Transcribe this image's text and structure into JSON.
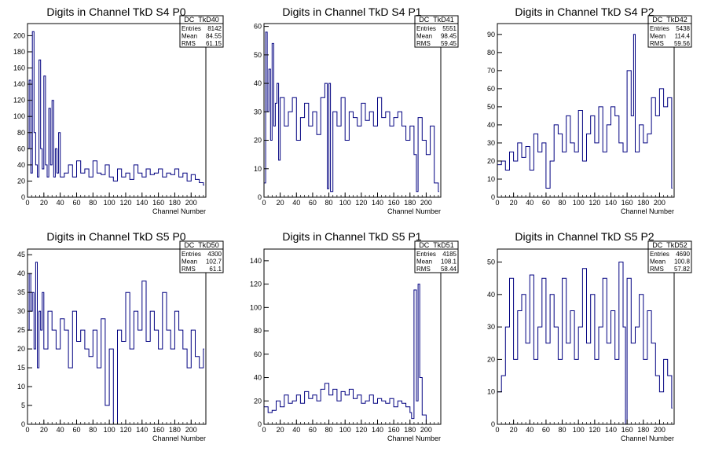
{
  "panels": [
    {
      "title": "Digits in Channel TkD S4 P0",
      "xlabel": "Channel Number",
      "stats": {
        "name": "DC_TkD40",
        "rows": [
          [
            "Entries",
            "8142"
          ],
          [
            "Mean",
            "84.55"
          ],
          [
            "RMS",
            "61.15"
          ]
        ]
      },
      "xlim": [
        0,
        218
      ],
      "ylim": [
        0,
        215
      ],
      "xticks": [
        0,
        20,
        40,
        60,
        80,
        100,
        120,
        140,
        160,
        180,
        200
      ],
      "yticks": [
        0,
        20,
        40,
        60,
        80,
        100,
        120,
        140,
        160,
        180,
        200
      ]
    },
    {
      "title": "Digits in Channel TkD S4 P1",
      "xlabel": "Channel Number",
      "stats": {
        "name": "DC_TkD41",
        "rows": [
          [
            "Entries",
            "5551"
          ],
          [
            "Mean",
            "98.45"
          ],
          [
            "RMS",
            "59.45"
          ]
        ]
      },
      "xlim": [
        0,
        218
      ],
      "ylim": [
        0,
        61
      ],
      "xticks": [
        0,
        20,
        40,
        60,
        80,
        100,
        120,
        140,
        160,
        180,
        200
      ],
      "yticks": [
        0,
        10,
        20,
        30,
        40,
        50,
        60
      ]
    },
    {
      "title": "Digits in Channel TkD S4 P2",
      "xlabel": "Channel Number",
      "stats": {
        "name": "DC_TkD42",
        "rows": [
          [
            "Entries",
            "5438"
          ],
          [
            "Mean",
            "114.4"
          ],
          [
            "RMS",
            "59.56"
          ]
        ]
      },
      "xlim": [
        0,
        218
      ],
      "ylim": [
        0,
        96
      ],
      "xticks": [
        0,
        20,
        40,
        60,
        80,
        100,
        120,
        140,
        160,
        180,
        200
      ],
      "yticks": [
        0,
        10,
        20,
        30,
        40,
        50,
        60,
        70,
        80,
        90
      ]
    },
    {
      "title": "Digits in Channel TkD S5 P0",
      "xlabel": "Channel Number",
      "stats": {
        "name": "DC_TkD50",
        "rows": [
          [
            "Entries",
            "4300"
          ],
          [
            "Mean",
            "102.7"
          ],
          [
            "RMS",
            "61.1"
          ]
        ]
      },
      "xlim": [
        0,
        218
      ],
      "ylim": [
        0,
        46.5
      ],
      "xticks": [
        0,
        20,
        40,
        60,
        80,
        100,
        120,
        140,
        160,
        180,
        200
      ],
      "yticks": [
        0,
        5,
        10,
        15,
        20,
        25,
        30,
        35,
        40,
        45
      ]
    },
    {
      "title": "Digits in Channel TkD S5 P1",
      "xlabel": "Channel Number",
      "stats": {
        "name": "DC_TkD51",
        "rows": [
          [
            "Entries",
            "4185"
          ],
          [
            "Mean",
            "108.1"
          ],
          [
            "RMS",
            "58.44"
          ]
        ]
      },
      "xlim": [
        0,
        218
      ],
      "ylim": [
        0,
        150
      ],
      "xticks": [
        0,
        20,
        40,
        60,
        80,
        100,
        120,
        140,
        160,
        180,
        200
      ],
      "yticks": [
        0,
        20,
        40,
        60,
        80,
        100,
        120,
        140
      ]
    },
    {
      "title": "Digits in Channel TkD S5 P2",
      "xlabel": "Channel Number",
      "stats": {
        "name": "DC_TkD52",
        "rows": [
          [
            "Entries",
            "4690"
          ],
          [
            "Mean",
            "100.8"
          ],
          [
            "RMS",
            "57.82"
          ]
        ]
      },
      "xlim": [
        0,
        218
      ],
      "ylim": [
        0,
        54
      ],
      "xticks": [
        0,
        20,
        40,
        60,
        80,
        100,
        120,
        140,
        160,
        180,
        200
      ],
      "yticks": [
        0,
        10,
        20,
        30,
        40,
        50
      ]
    }
  ],
  "colors": {
    "line": "#000080",
    "frame": "#000000"
  },
  "chart_data": [
    {
      "type": "line",
      "title": "Digits in Channel TkD S4 P0",
      "xlabel": "Channel Number",
      "ylabel": "",
      "xlim": [
        0,
        218
      ],
      "ylim": [
        0,
        215
      ],
      "series": [
        {
          "x": [
            0,
            2,
            4,
            6,
            8,
            10,
            12,
            14,
            16,
            18,
            20,
            22,
            24,
            26,
            28,
            30,
            32,
            34,
            36,
            38,
            40,
            45,
            50,
            55,
            60,
            65,
            70,
            75,
            80,
            85,
            90,
            95,
            100,
            105,
            110,
            115,
            120,
            125,
            130,
            135,
            140,
            145,
            150,
            155,
            160,
            165,
            170,
            175,
            180,
            185,
            190,
            195,
            200,
            205,
            210,
            215
          ],
          "y": [
            60,
            145,
            30,
            205,
            80,
            40,
            25,
            170,
            60,
            35,
            150,
            40,
            25,
            110,
            40,
            120,
            25,
            60,
            30,
            80,
            25,
            30,
            40,
            25,
            45,
            30,
            35,
            25,
            45,
            30,
            28,
            40,
            25,
            20,
            35,
            25,
            30,
            22,
            40,
            30,
            25,
            35,
            28,
            30,
            35,
            25,
            30,
            28,
            35,
            25,
            30,
            20,
            28,
            22,
            18,
            15
          ]
        }
      ]
    },
    {
      "type": "line",
      "title": "Digits in Channel TkD S4 P1",
      "xlabel": "Channel Number",
      "ylabel": "",
      "xlim": [
        0,
        218
      ],
      "ylim": [
        0,
        61
      ],
      "series": [
        {
          "x": [
            0,
            2,
            4,
            6,
            8,
            10,
            12,
            14,
            16,
            18,
            20,
            25,
            30,
            35,
            40,
            45,
            50,
            55,
            60,
            65,
            70,
            75,
            78,
            80,
            82,
            85,
            90,
            95,
            100,
            105,
            110,
            115,
            120,
            125,
            130,
            135,
            140,
            145,
            150,
            155,
            160,
            165,
            170,
            175,
            180,
            185,
            188,
            190,
            195,
            200,
            205,
            210,
            215
          ],
          "y": [
            5,
            58,
            30,
            45,
            20,
            54,
            25,
            33,
            40,
            13,
            35,
            25,
            30,
            35,
            20,
            28,
            33,
            25,
            30,
            22,
            35,
            40,
            3,
            40,
            2,
            30,
            25,
            35,
            20,
            30,
            28,
            25,
            33,
            27,
            30,
            25,
            35,
            28,
            30,
            25,
            28,
            30,
            25,
            20,
            25,
            15,
            2,
            28,
            20,
            15,
            25,
            5,
            2
          ]
        }
      ]
    },
    {
      "type": "line",
      "title": "Digits in Channel TkD S4 P2",
      "xlabel": "Channel Number",
      "ylabel": "",
      "xlim": [
        0,
        218
      ],
      "ylim": [
        0,
        96
      ],
      "series": [
        {
          "x": [
            0,
            5,
            10,
            15,
            20,
            25,
            30,
            35,
            40,
            45,
            50,
            55,
            60,
            65,
            70,
            75,
            80,
            85,
            90,
            95,
            100,
            105,
            110,
            115,
            120,
            125,
            130,
            135,
            140,
            145,
            150,
            155,
            160,
            165,
            168,
            170,
            175,
            180,
            185,
            190,
            195,
            200,
            205,
            210,
            215
          ],
          "y": [
            18,
            20,
            15,
            25,
            20,
            30,
            22,
            28,
            15,
            35,
            25,
            30,
            5,
            20,
            40,
            35,
            25,
            45,
            30,
            25,
            48,
            20,
            35,
            45,
            30,
            50,
            25,
            40,
            50,
            45,
            30,
            25,
            70,
            45,
            90,
            25,
            40,
            30,
            35,
            55,
            45,
            60,
            50,
            55,
            5
          ]
        }
      ]
    },
    {
      "type": "line",
      "title": "Digits in Channel TkD S5 P0",
      "xlabel": "Channel Number",
      "ylabel": "",
      "xlim": [
        0,
        218
      ],
      "ylim": [
        0,
        46.5
      ],
      "series": [
        {
          "x": [
            0,
            2,
            4,
            6,
            8,
            10,
            12,
            14,
            16,
            18,
            20,
            25,
            30,
            35,
            40,
            45,
            50,
            55,
            60,
            65,
            70,
            75,
            80,
            85,
            90,
            95,
            100,
            105,
            110,
            115,
            120,
            125,
            130,
            135,
            140,
            145,
            150,
            155,
            160,
            165,
            170,
            175,
            180,
            185,
            190,
            195,
            200,
            205,
            210,
            215
          ],
          "y": [
            25,
            40,
            30,
            35,
            20,
            43,
            15,
            30,
            25,
            35,
            20,
            30,
            25,
            20,
            28,
            25,
            15,
            30,
            22,
            25,
            20,
            18,
            25,
            15,
            28,
            5,
            20,
            0,
            25,
            22,
            35,
            20,
            30,
            25,
            38,
            22,
            30,
            25,
            20,
            35,
            25,
            20,
            30,
            25,
            20,
            15,
            25,
            18,
            15,
            20
          ]
        }
      ]
    },
    {
      "type": "line",
      "title": "Digits in Channel TkD S5 P1",
      "xlabel": "Channel Number",
      "ylabel": "",
      "xlim": [
        0,
        218
      ],
      "ylim": [
        0,
        150
      ],
      "series": [
        {
          "x": [
            0,
            5,
            10,
            15,
            20,
            25,
            30,
            35,
            40,
            45,
            50,
            55,
            60,
            65,
            70,
            75,
            80,
            85,
            90,
            95,
            100,
            105,
            110,
            115,
            120,
            125,
            130,
            135,
            140,
            145,
            150,
            155,
            160,
            165,
            170,
            175,
            180,
            182,
            185,
            188,
            190,
            192,
            195,
            200,
            205,
            210,
            215
          ],
          "y": [
            15,
            10,
            12,
            20,
            15,
            25,
            18,
            20,
            25,
            18,
            28,
            22,
            25,
            20,
            30,
            35,
            25,
            30,
            20,
            28,
            25,
            30,
            22,
            25,
            18,
            20,
            25,
            18,
            22,
            20,
            18,
            22,
            15,
            20,
            18,
            15,
            10,
            5,
            115,
            20,
            120,
            40,
            8,
            0,
            0,
            0,
            0
          ]
        }
      ]
    },
    {
      "type": "line",
      "title": "Digits in Channel TkD S5 P2",
      "xlabel": "Channel Number",
      "ylabel": "",
      "xlim": [
        0,
        218
      ],
      "ylim": [
        0,
        54
      ],
      "series": [
        {
          "x": [
            0,
            5,
            10,
            15,
            20,
            25,
            30,
            35,
            40,
            45,
            50,
            55,
            60,
            65,
            70,
            75,
            80,
            85,
            90,
            95,
            100,
            105,
            110,
            115,
            120,
            125,
            130,
            135,
            140,
            145,
            150,
            155,
            158,
            160,
            165,
            170,
            175,
            180,
            185,
            190,
            195,
            200,
            205,
            210,
            215
          ],
          "y": [
            10,
            15,
            30,
            45,
            20,
            35,
            40,
            25,
            46,
            20,
            30,
            45,
            25,
            40,
            30,
            20,
            45,
            25,
            35,
            20,
            30,
            48,
            25,
            40,
            20,
            30,
            45,
            25,
            35,
            20,
            50,
            30,
            0,
            45,
            25,
            30,
            40,
            20,
            35,
            25,
            15,
            10,
            20,
            15,
            5
          ]
        }
      ]
    }
  ]
}
